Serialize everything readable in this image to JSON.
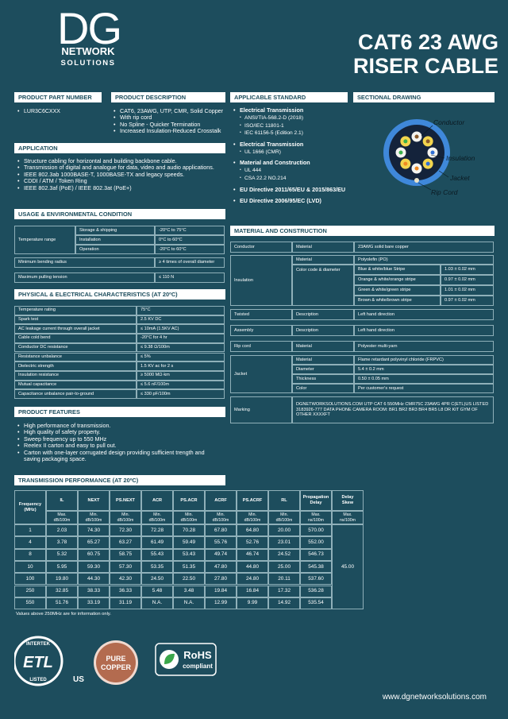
{
  "logo": {
    "mark": "DG",
    "line1": "NETWORK",
    "line2": "SOLUTIONS"
  },
  "title": {
    "line1": "CAT6 23 AWG",
    "line2": "RISER CABLE"
  },
  "part_number": {
    "heading": "PRODUCT PART NUMBER",
    "value": "LUR3C6CXXX"
  },
  "description": {
    "heading": "PRODUCT DESCRIPTION",
    "items": [
      "CAT6, 23AWG, UTP, CMR, Solid Copper",
      "With rip cord",
      "No Spline - Quicker Termination",
      "Increased Insulation-Reduced Crosstalk"
    ]
  },
  "standards": {
    "heading": "APPLICABLE STANDARD",
    "groups": [
      {
        "title": "Electrical Transmission",
        "items": [
          "ANSI/TIA-568.2-D (2018)",
          "ISO/IEC 11801-1",
          "IEC 61156-5 (Edition 2.1)"
        ]
      },
      {
        "title": "Electrical Transmission",
        "items": [
          "UL 1666 (CMR)"
        ]
      },
      {
        "title": "Material and Construction",
        "items": [
          "UL 444",
          "CSA 22.2 NO.214"
        ]
      },
      {
        "title": "EU Directive 2011/65/EU & 2015/863/EU",
        "items": []
      },
      {
        "title": "EU Directive 2006/95/EC (LVD)",
        "items": []
      }
    ]
  },
  "drawing": {
    "heading": "SECTIONAL DRAWING",
    "labels": [
      "Conductor",
      "Insulation",
      "Jacket",
      "Rip Cord"
    ]
  },
  "application": {
    "heading": "APPLICATION",
    "items": [
      "Structure cabling for horizontal and building backbone cable.",
      "Transmission of digital and analogue for data, video and audio applications.",
      "IEEE 802.3ab 1000BASE-T, 1000BASE-TX and legacy speeds.",
      "CDDI / ATM / Token Ring",
      "IEEE 802.3af (PoE) / IEEE 802.3at (PoE+)"
    ]
  },
  "usage": {
    "heading": "USAGE & ENVIRONMENTAL CONDITION",
    "temperature": {
      "label": "Temperature range",
      "rows": [
        [
          "Storage & shipping",
          "-20°C to 75°C"
        ],
        [
          "Installation",
          "0°C to 60°C"
        ],
        [
          "Operation",
          "-20°C to 60°C"
        ]
      ]
    },
    "rows": [
      [
        "Minimum bending radius",
        "≥ 4 times of overall diameter"
      ],
      [
        "Maximum pulling tension",
        "≤ 110 N"
      ]
    ]
  },
  "physical": {
    "heading": "PHYSICAL & ELECTRICAL CHARACTERISTICS (AT 20ºC)",
    "rows": [
      [
        "Temperature rating",
        "75°C"
      ],
      [
        "Spark test",
        "2.5 KV DC"
      ],
      [
        "AC leakage current through overall jacket",
        "≤ 10mA (1.5KV AC)"
      ],
      [
        "Cable cold bend",
        "-20°C for 4 hr"
      ],
      [
        "Conductor DC resistance",
        "≤ 9.38 Ω/100m"
      ],
      [
        "Resistance unbalance",
        "≤ 5%"
      ],
      [
        "Dielectric strength",
        "1.5 KV ac for 2 s"
      ],
      [
        "Insulation resistance",
        "≥ 5000 MΩ·km"
      ],
      [
        "Mutual capacitance",
        "≤ 5.6 nF/100m"
      ],
      [
        "Capacitance unbalance pair-to-ground",
        "≤ 330 pF/100m"
      ]
    ]
  },
  "features": {
    "heading": "PRODUCT FEATURES",
    "items": [
      "High performance of transmission.",
      "High quality of safety property.",
      "Sweep frequency up to 550 MHz",
      "Reelex II carton and easy to pull out.",
      "Carton with one-layer corrugated design providing sufficient trength and saving packaging space."
    ]
  },
  "material": {
    "heading": "MATERIAL AND CONSTRUCTION",
    "groups": [
      {
        "label": "Conductor",
        "rows": [
          [
            "Material",
            "23AWG solid bare copper"
          ]
        ]
      },
      {
        "label": "Insulation",
        "rows": [
          [
            "Material",
            "Polyolefin (PO)"
          ]
        ],
        "color": {
          "label": "Color code & diameter",
          "rows": [
            [
              "Blue & white/blue Stripe",
              "1.03 ± 0.02 mm"
            ],
            [
              "Orange & white/orange stripe",
              "0.97 ± 0.02 mm"
            ],
            [
              "Green & white/green stripe",
              "1.01 ± 0.02 mm"
            ],
            [
              "Brown & white/brown stripe",
              "0.97 ± 0.02 mm"
            ]
          ]
        }
      },
      {
        "label": "Twisted",
        "rows": [
          [
            "Description",
            "Left hand direction"
          ]
        ]
      },
      {
        "label": "Assembly",
        "rows": [
          [
            "Description",
            "Left hand direction"
          ]
        ]
      },
      {
        "label": "Rip cord",
        "rows": [
          [
            "Material",
            "Polyester multi-yarn"
          ]
        ]
      },
      {
        "label": "Jacket",
        "rows": [
          [
            "Material",
            "Flame retardant polyvinyl chloride (FRPVC)"
          ],
          [
            "Diameter",
            "5.4 ± 0.2 mm"
          ],
          [
            "Thickness",
            "0.50 ± 0.05 mm"
          ],
          [
            "Color",
            "Per customer's request"
          ]
        ]
      },
      {
        "label": "Marking",
        "text": "DGNETWORKSOLUTIONS.COM UTP CAT 6 550MHz CMR75C 23AWG 4PR C(ETL)US LISTED 3183926-777 DATA PHONE CAMERA ROOM: BR1 BR2 BR3 BR4 BR5 L8 DR KIT GYM OF OTHER XXXXFT"
      }
    ]
  },
  "transmission": {
    "heading": "TRANSMISSION PERFORMANCE (AT 20ºC)",
    "columns": [
      {
        "name": "Frequency",
        "unit": "(MHz)"
      },
      {
        "name": "IL",
        "unit": "Max. dB/100m"
      },
      {
        "name": "NEXT",
        "unit": "Min. dB/100m"
      },
      {
        "name": "PS.NEXT",
        "unit": "Min. dB/100m"
      },
      {
        "name": "ACR",
        "unit": "Min. dB/100m"
      },
      {
        "name": "PS.ACR",
        "unit": "Min. dB/100m"
      },
      {
        "name": "ACRF",
        "unit": "Min. dB/100m"
      },
      {
        "name": "PS.ACRF",
        "unit": "Min. dB/100m"
      },
      {
        "name": "RL",
        "unit": "Min. dB/100m"
      },
      {
        "name": "Propagation Delay",
        "unit": "Max. ns/100m"
      },
      {
        "name": "Delay Skew",
        "unit": "Max. ns/100m"
      }
    ],
    "rows": [
      [
        "1",
        "2.03",
        "74.30",
        "72.30",
        "72.28",
        "70.28",
        "67.80",
        "64.80",
        "20.00",
        "570.00"
      ],
      [
        "4",
        "3.78",
        "65.27",
        "63.27",
        "61.49",
        "59.49",
        "55.76",
        "52.76",
        "23.01",
        "552.00"
      ],
      [
        "8",
        "5.32",
        "60.75",
        "58.75",
        "55.43",
        "53.43",
        "49.74",
        "46.74",
        "24.52",
        "546.73"
      ],
      [
        "10",
        "5.95",
        "59.30",
        "57.30",
        "53.35",
        "51.35",
        "47.80",
        "44.80",
        "25.00",
        "545.38"
      ],
      [
        "100",
        "19.80",
        "44.30",
        "42.30",
        "24.50",
        "22.50",
        "27.80",
        "24.80",
        "20.11",
        "537.60"
      ],
      [
        "250",
        "32.85",
        "38.33",
        "36.33",
        "5.48",
        "3.48",
        "19.84",
        "16.84",
        "17.32",
        "536.28"
      ],
      [
        "550",
        "51.76",
        "33.19",
        "31.19",
        "N.A.",
        "N.A.",
        "12.99",
        "9.99",
        "14.92",
        "535.54"
      ]
    ],
    "delay_skew": "45.00",
    "note": "Values above 250MHz are for information only."
  },
  "badges": {
    "etl": {
      "top": "INTERTEK",
      "mark": "ETL",
      "bottom": "LISTED",
      "country": "US"
    },
    "copper": {
      "line1": "PURE",
      "line2": "COPPER"
    },
    "rohs": {
      "title": "RoHS",
      "sub": "compliant"
    }
  },
  "url": "www.dgnetworksolutions.com"
}
